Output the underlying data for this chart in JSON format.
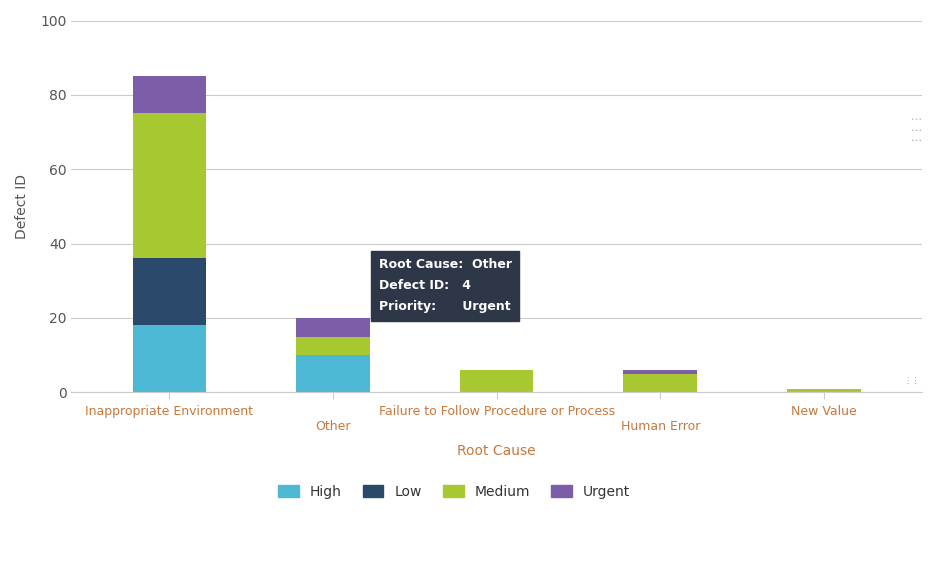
{
  "categories": [
    "Inappropriate Environment",
    "Other",
    "Failure to Follow Procedure or Process",
    "Human Error",
    "New Value"
  ],
  "series": {
    "High": [
      18,
      10,
      0,
      0,
      0
    ],
    "Low": [
      18,
      0,
      0,
      0,
      0
    ],
    "Medium": [
      39,
      5,
      6,
      5,
      1
    ],
    "Urgent": [
      10,
      5,
      0,
      1,
      0
    ]
  },
  "colors": {
    "High": "#4db8d4",
    "Low": "#2b4a6b",
    "Medium": "#a8c832",
    "Urgent": "#7b5ea7"
  },
  "xlabel": "Root Cause",
  "ylabel": "Defect ID",
  "ylim": [
    0,
    100
  ],
  "yticks": [
    0,
    20,
    40,
    60,
    80,
    100
  ],
  "background_color": "#ffffff",
  "grid_color": "#cccccc",
  "tick_label_color": "#555555",
  "axis_label_color": "#c8783c",
  "legend_order": [
    "High",
    "Low",
    "Medium",
    "Urgent"
  ],
  "bar_width": 0.45,
  "tooltip_bg": "#2d3748",
  "tooltip_fg": "#ffffff",
  "dots_color": "#aaaaaa"
}
